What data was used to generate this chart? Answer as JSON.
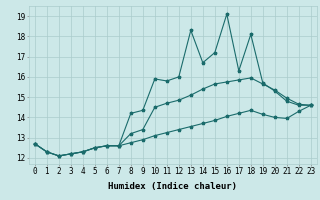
{
  "xlabel": "Humidex (Indice chaleur)",
  "background_color": "#cce8e8",
  "grid_color": "#aacccc",
  "line_color": "#1a6b6b",
  "xlim": [
    -0.5,
    23.5
  ],
  "ylim": [
    11.7,
    19.5
  ],
  "xticks": [
    0,
    1,
    2,
    3,
    4,
    5,
    6,
    7,
    8,
    9,
    10,
    11,
    12,
    13,
    14,
    15,
    16,
    17,
    18,
    19,
    20,
    21,
    22,
    23
  ],
  "yticks": [
    12,
    13,
    14,
    15,
    16,
    17,
    18,
    19
  ],
  "line1_x": [
    0,
    1,
    2,
    3,
    4,
    5,
    6,
    7,
    8,
    9,
    10,
    11,
    12,
    13,
    14,
    15,
    16,
    17,
    18,
    19,
    20,
    21,
    22,
    23
  ],
  "line1_y": [
    12.7,
    12.3,
    12.1,
    12.2,
    12.3,
    12.5,
    12.6,
    12.6,
    14.2,
    14.35,
    15.9,
    15.8,
    16.0,
    18.3,
    16.7,
    17.2,
    19.1,
    16.3,
    18.1,
    15.7,
    15.3,
    14.8,
    14.6,
    14.6
  ],
  "line2_x": [
    0,
    1,
    2,
    3,
    4,
    5,
    6,
    7,
    8,
    9,
    10,
    11,
    12,
    13,
    14,
    15,
    16,
    17,
    18,
    19,
    20,
    21,
    22,
    23
  ],
  "line2_y": [
    12.7,
    12.3,
    12.1,
    12.2,
    12.3,
    12.5,
    12.6,
    12.6,
    13.2,
    13.4,
    14.5,
    14.7,
    14.85,
    15.1,
    15.4,
    15.65,
    15.75,
    15.85,
    15.95,
    15.65,
    15.35,
    14.95,
    14.65,
    14.6
  ],
  "line3_x": [
    0,
    1,
    2,
    3,
    4,
    5,
    6,
    7,
    8,
    9,
    10,
    11,
    12,
    13,
    14,
    15,
    16,
    17,
    18,
    19,
    20,
    21,
    22,
    23
  ],
  "line3_y": [
    12.7,
    12.3,
    12.1,
    12.2,
    12.3,
    12.5,
    12.6,
    12.6,
    12.75,
    12.9,
    13.1,
    13.25,
    13.4,
    13.55,
    13.7,
    13.85,
    14.05,
    14.2,
    14.35,
    14.15,
    14.0,
    13.95,
    14.3,
    14.6
  ],
  "markersize": 2.5,
  "linewidth": 0.8,
  "xlabel_fontsize": 6.5,
  "tick_fontsize": 5.5
}
